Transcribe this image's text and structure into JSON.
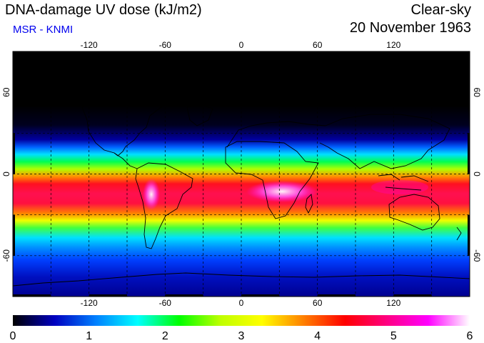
{
  "header": {
    "title": "DNA-damage UV dose (kJ/m2)",
    "subtitle": "MSR - KNMI",
    "scenario": "Clear-sky",
    "date": "20 November 1963"
  },
  "map": {
    "projection": "equirectangular",
    "lon_range": [
      -180,
      180
    ],
    "lat_range": [
      -90,
      90
    ],
    "lon_ticks": [
      "-120",
      "-60",
      "0",
      "60",
      "120"
    ],
    "lat_ticks": [
      "60",
      "0",
      "-60"
    ],
    "grid": "dashed, every 30 degrees",
    "coastlines": "black outline"
  },
  "colorbar": {
    "min": 0,
    "max": 6,
    "tick_labels": [
      "0",
      "1",
      "2",
      "3",
      "4",
      "5",
      "6"
    ],
    "colors": [
      "#000000",
      "#0000c0",
      "#0080ff",
      "#00ffff",
      "#00ff00",
      "#c0ff00",
      "#ffff00",
      "#ff8000",
      "#ff0000",
      "#ff0080",
      "#ff00ff",
      "#ffffff"
    ]
  }
}
